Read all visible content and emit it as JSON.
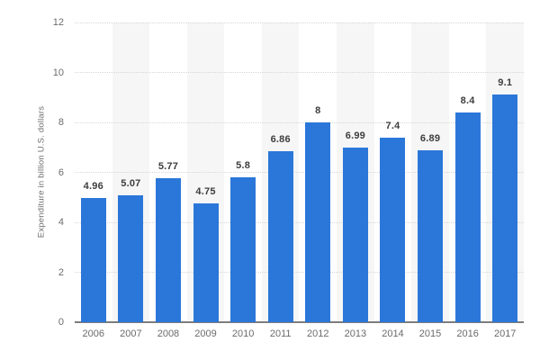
{
  "chart_data": {
    "type": "bar",
    "title": "",
    "xlabel": "",
    "ylabel": "Expenditure in billion U.S. dollars",
    "categories": [
      "2006",
      "2007",
      "2008",
      "2009",
      "2010",
      "2011",
      "2012",
      "2013",
      "2014",
      "2015",
      "2016",
      "2017"
    ],
    "values": [
      4.96,
      5.07,
      5.77,
      4.75,
      5.8,
      6.86,
      8,
      6.99,
      7.4,
      6.89,
      8.4,
      9.1
    ],
    "value_labels": [
      "4.96",
      "5.07",
      "5.77",
      "4.75",
      "5.8",
      "6.86",
      "8",
      "6.99",
      "7.4",
      "6.89",
      "8.4",
      "9.1"
    ],
    "ylim": [
      0,
      12
    ],
    "yticks": [
      0,
      2,
      4,
      6,
      8,
      10,
      12
    ],
    "grid": "horizontal-dotted",
    "legend": "none",
    "plot_bands": "alternating vertical bands behind every second category",
    "colors": {
      "bar": "#2b77d9",
      "band": "#f6f6f6",
      "gridline": "#d6d6d6",
      "axis_line": "#7d7d7d",
      "tick_label": "#6b6b6b",
      "value_label": "#3d3d3d",
      "background": "#ffffff"
    }
  }
}
